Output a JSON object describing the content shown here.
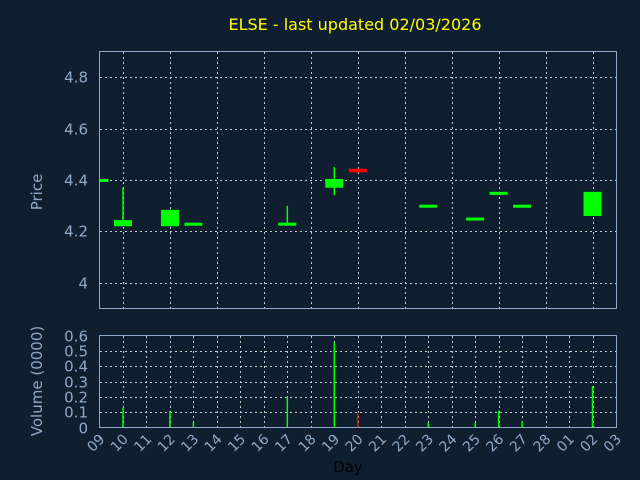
{
  "chart_data": [
    {
      "type": "candlestick",
      "title": "ELSE - last updated 02/03/2026",
      "ylabel": "Price",
      "ylim": [
        3.9,
        4.9
      ],
      "yticks": [
        "4",
        "4.2",
        "4.4",
        "4.6",
        "4.8"
      ],
      "grid": true,
      "up_color": "#00ff00",
      "down_color": "#ff0000",
      "candles": [
        {
          "day": "09",
          "open": 4.4,
          "high": 4.4,
          "low": 4.4,
          "close": 4.4
        },
        {
          "day": "10",
          "open": 4.22,
          "high": 4.37,
          "low": 4.22,
          "close": 4.24
        },
        {
          "day": "12",
          "open": 4.22,
          "high": 4.28,
          "low": 4.22,
          "close": 4.28
        },
        {
          "day": "13",
          "open": 4.23,
          "high": 4.23,
          "low": 4.23,
          "close": 4.23
        },
        {
          "day": "17",
          "open": 4.23,
          "high": 4.3,
          "low": 4.23,
          "close": 4.23
        },
        {
          "day": "19",
          "open": 4.37,
          "high": 4.45,
          "low": 4.34,
          "close": 4.4
        },
        {
          "day": "20",
          "open": 4.44,
          "high": 4.44,
          "low": 4.43,
          "close": 4.43
        },
        {
          "day": "23",
          "open": 4.3,
          "high": 4.3,
          "low": 4.3,
          "close": 4.3
        },
        {
          "day": "25",
          "open": 4.25,
          "high": 4.25,
          "low": 4.25,
          "close": 4.25
        },
        {
          "day": "26",
          "open": 4.35,
          "high": 4.35,
          "low": 4.35,
          "close": 4.35
        },
        {
          "day": "27",
          "open": 4.3,
          "high": 4.3,
          "low": 4.3,
          "close": 4.3
        },
        {
          "day": "02",
          "open": 4.26,
          "high": 4.35,
          "low": 4.26,
          "close": 4.35
        }
      ]
    },
    {
      "type": "bar",
      "ylabel": "Volume (0000)",
      "xlabel": "Day",
      "ylim": [
        0,
        0.6
      ],
      "yticks": [
        "0",
        "0.1",
        "0.2",
        "0.3",
        "0.4",
        "0.5",
        "0.6"
      ],
      "categories": [
        "09",
        "10",
        "11",
        "12",
        "13",
        "14",
        "15",
        "16",
        "17",
        "18",
        "19",
        "20",
        "21",
        "22",
        "23",
        "24",
        "25",
        "26",
        "27",
        "28",
        "01",
        "02",
        "03"
      ],
      "bars": [
        {
          "day": "10",
          "value": 0.13,
          "color": "#00ff00"
        },
        {
          "day": "12",
          "value": 0.11,
          "color": "#00ff00"
        },
        {
          "day": "13",
          "value": 0.03,
          "color": "#00ff00"
        },
        {
          "day": "17",
          "value": 0.2,
          "color": "#00ff00"
        },
        {
          "day": "19",
          "value": 0.555,
          "color": "#00ff00"
        },
        {
          "day": "20",
          "value": 0.09,
          "color": "#ff0000"
        },
        {
          "day": "23",
          "value": 0.03,
          "color": "#00ff00"
        },
        {
          "day": "25",
          "value": 0.03,
          "color": "#00ff00"
        },
        {
          "day": "26",
          "value": 0.11,
          "color": "#00ff00"
        },
        {
          "day": "27",
          "value": 0.04,
          "color": "#00ff00"
        },
        {
          "day": "02",
          "value": 0.27,
          "color": "#00ff00"
        }
      ]
    }
  ],
  "colors": {
    "background": "#0f1f30",
    "title": "#ffff00",
    "axis": "#8fa9c9",
    "grid": "#c8c8c8"
  }
}
